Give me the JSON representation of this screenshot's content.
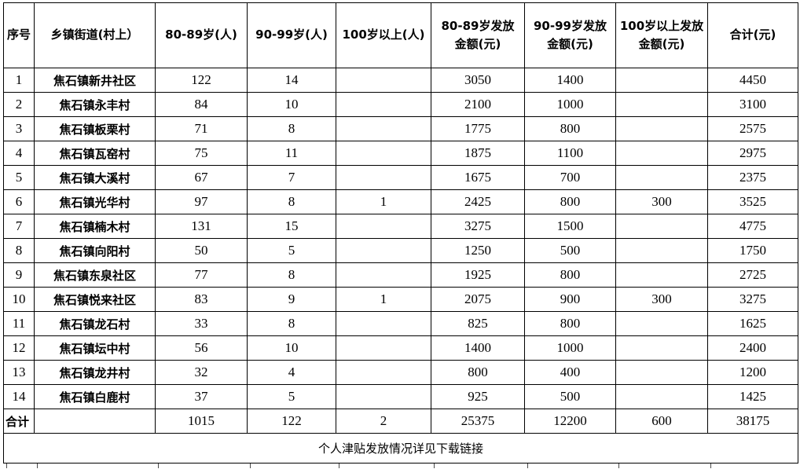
{
  "colors": {
    "border": "#000000",
    "text": "#000000",
    "background": "#ffffff"
  },
  "table": {
    "headers": [
      "序号",
      "乡镇街道(村上）",
      "80-89岁(人)",
      "90-99岁(人)",
      "100岁以上(人)",
      "80-89岁发放\n金额(元)",
      "90-99岁发放\n金额(元)",
      "100岁以上发放\n金额(元)",
      "合计(元)"
    ],
    "rows": [
      [
        "1",
        "焦石镇新井社区",
        "122",
        "14",
        "",
        "3050",
        "1400",
        "",
        "4450"
      ],
      [
        "2",
        "焦石镇永丰村",
        "84",
        "10",
        "",
        "2100",
        "1000",
        "",
        "3100"
      ],
      [
        "3",
        "焦石镇板栗村",
        "71",
        "8",
        "",
        "1775",
        "800",
        "",
        "2575"
      ],
      [
        "4",
        "焦石镇瓦窑村",
        "75",
        "11",
        "",
        "1875",
        "1100",
        "",
        "2975"
      ],
      [
        "5",
        "焦石镇大溪村",
        "67",
        "7",
        "",
        "1675",
        "700",
        "",
        "2375"
      ],
      [
        "6",
        "焦石镇光华村",
        "97",
        "8",
        "1",
        "2425",
        "800",
        "300",
        "3525"
      ],
      [
        "7",
        "焦石镇楠木村",
        "131",
        "15",
        "",
        "3275",
        "1500",
        "",
        "4775"
      ],
      [
        "8",
        "焦石镇向阳村",
        "50",
        "5",
        "",
        "1250",
        "500",
        "",
        "1750"
      ],
      [
        "9",
        "焦石镇东泉社区",
        "77",
        "8",
        "",
        "1925",
        "800",
        "",
        "2725"
      ],
      [
        "10",
        "焦石镇悦来社区",
        "83",
        "9",
        "1",
        "2075",
        "900",
        "300",
        "3275"
      ],
      [
        "11",
        "焦石镇龙石村",
        "33",
        "8",
        "",
        "825",
        "800",
        "",
        "1625"
      ],
      [
        "12",
        "焦石镇坛中村",
        "56",
        "10",
        "",
        "1400",
        "1000",
        "",
        "2400"
      ],
      [
        "13",
        "焦石镇龙井村",
        "32",
        "4",
        "",
        "800",
        "400",
        "",
        "1200"
      ],
      [
        "14",
        "焦石镇白鹿村",
        "37",
        "5",
        "",
        "925",
        "500",
        "",
        "1425"
      ]
    ],
    "total_row": [
      "合计",
      "",
      "1015",
      "122",
      "2",
      "25375",
      "12200",
      "600",
      "38175"
    ],
    "footer_note": "个人津贴发放情况详见下载链接"
  }
}
